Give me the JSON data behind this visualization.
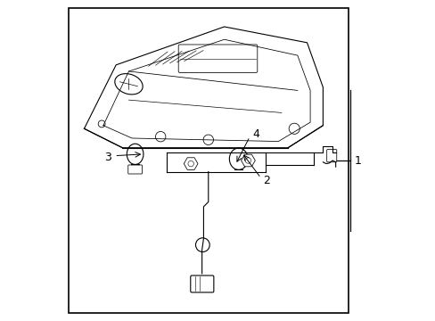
{
  "background_color": "#ffffff",
  "border_color": "#000000",
  "line_color": "#000000",
  "text_color": "#000000",
  "figsize": [
    4.89,
    3.6
  ],
  "dpi": 100
}
